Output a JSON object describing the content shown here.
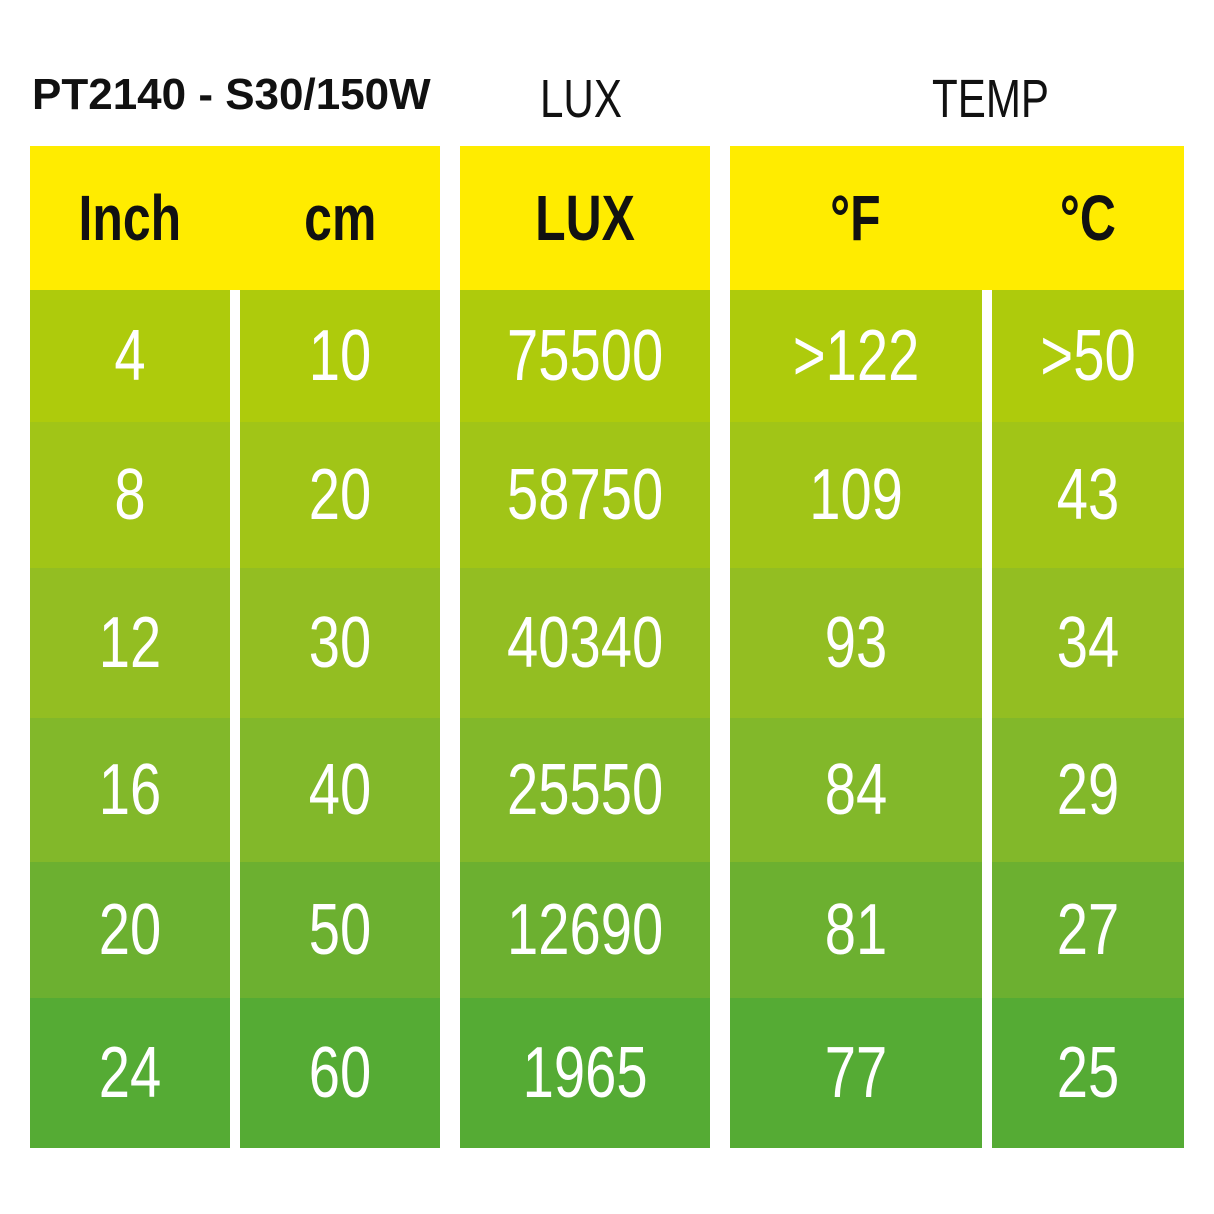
{
  "title": "PT2140 - S30/150W",
  "group_labels": {
    "lux": "LUX",
    "temp": "TEMP"
  },
  "colors": {
    "header": "#FFEC00",
    "rows": [
      "#AECB0C",
      "#A1C517",
      "#93BE22",
      "#82B82A",
      "#6CB030",
      "#55AB34"
    ],
    "text": "#FFFFFF"
  },
  "chart_data": {
    "type": "table",
    "title": "PT2140 - S30/150W",
    "columns": [
      "Inch",
      "cm",
      "LUX",
      "°F",
      "°C"
    ],
    "rows": [
      [
        "4",
        "10",
        "75500",
        ">122",
        ">50"
      ],
      [
        "8",
        "20",
        "58750",
        "109",
        "43"
      ],
      [
        "12",
        "30",
        "40340",
        "93",
        "34"
      ],
      [
        "16",
        "40",
        "25550",
        "84",
        "29"
      ],
      [
        "20",
        "50",
        "12690",
        "81",
        "27"
      ],
      [
        "24",
        "60",
        "1965",
        "77",
        "25"
      ]
    ]
  }
}
